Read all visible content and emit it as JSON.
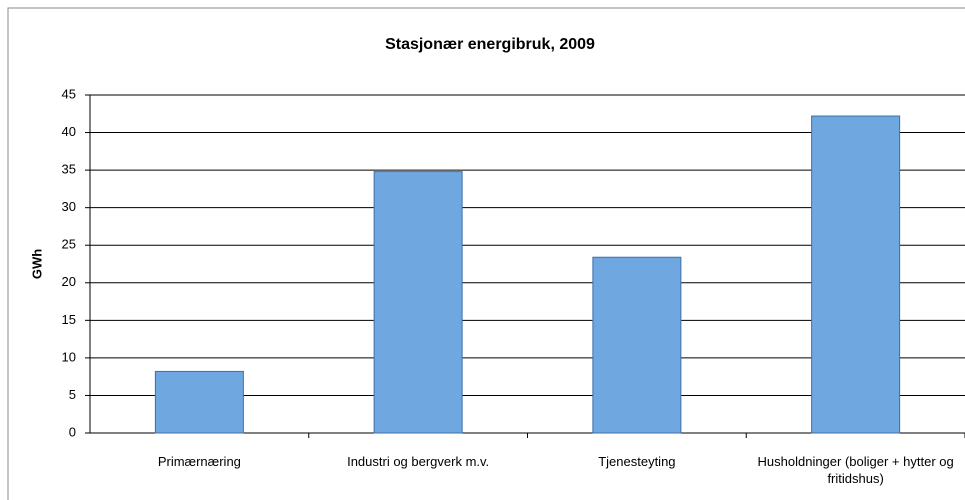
{
  "chart_data": {
    "type": "bar",
    "title": "Stasjonær energibruk, 2009",
    "ylabel": "GWh",
    "categories": [
      "Primærnæring",
      "Industri og bergverk m.v.",
      "Tjenesteyting",
      "Husholdninger (boliger + hytter og fritidshus)"
    ],
    "values": [
      8.2,
      34.8,
      23.4,
      42.2
    ],
    "color": "#6fa8e0",
    "ylim": [
      0,
      45
    ],
    "yticks": [
      0,
      5,
      10,
      15,
      20,
      25,
      30,
      35,
      40,
      45
    ],
    "grid": true
  }
}
